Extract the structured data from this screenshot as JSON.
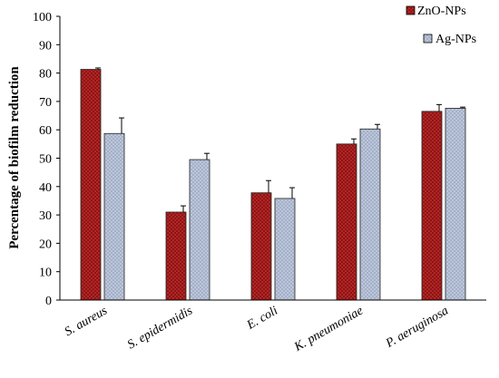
{
  "chart_data": {
    "type": "bar",
    "title": "",
    "xlabel": "",
    "ylabel": "Percentage of biofilm reduction",
    "ylim": [
      0,
      100
    ],
    "yticks": [
      0,
      10,
      20,
      30,
      40,
      50,
      60,
      70,
      80,
      90,
      100
    ],
    "categories": [
      "S. aureus",
      "S. epidermidis",
      "E. coli",
      "K. pneumoniae",
      "P. aeruginosa"
    ],
    "series": [
      {
        "name": "ZnO-NPs",
        "values": [
          81.3,
          31,
          37.8,
          55,
          66.5
        ],
        "errors": [
          0.5,
          2.2,
          4.3,
          1.8,
          2.4
        ],
        "color": "#b22222",
        "pattern": "checker-dark"
      },
      {
        "name": "Ag-NPs",
        "values": [
          58.7,
          49.5,
          35.8,
          60.3,
          67.6
        ],
        "errors": [
          5.5,
          2.2,
          3.8,
          1.6,
          0.4
        ],
        "color": "#b4bfd6",
        "pattern": "checker-light"
      }
    ],
    "legend_position": "top-right",
    "grid": false
  }
}
